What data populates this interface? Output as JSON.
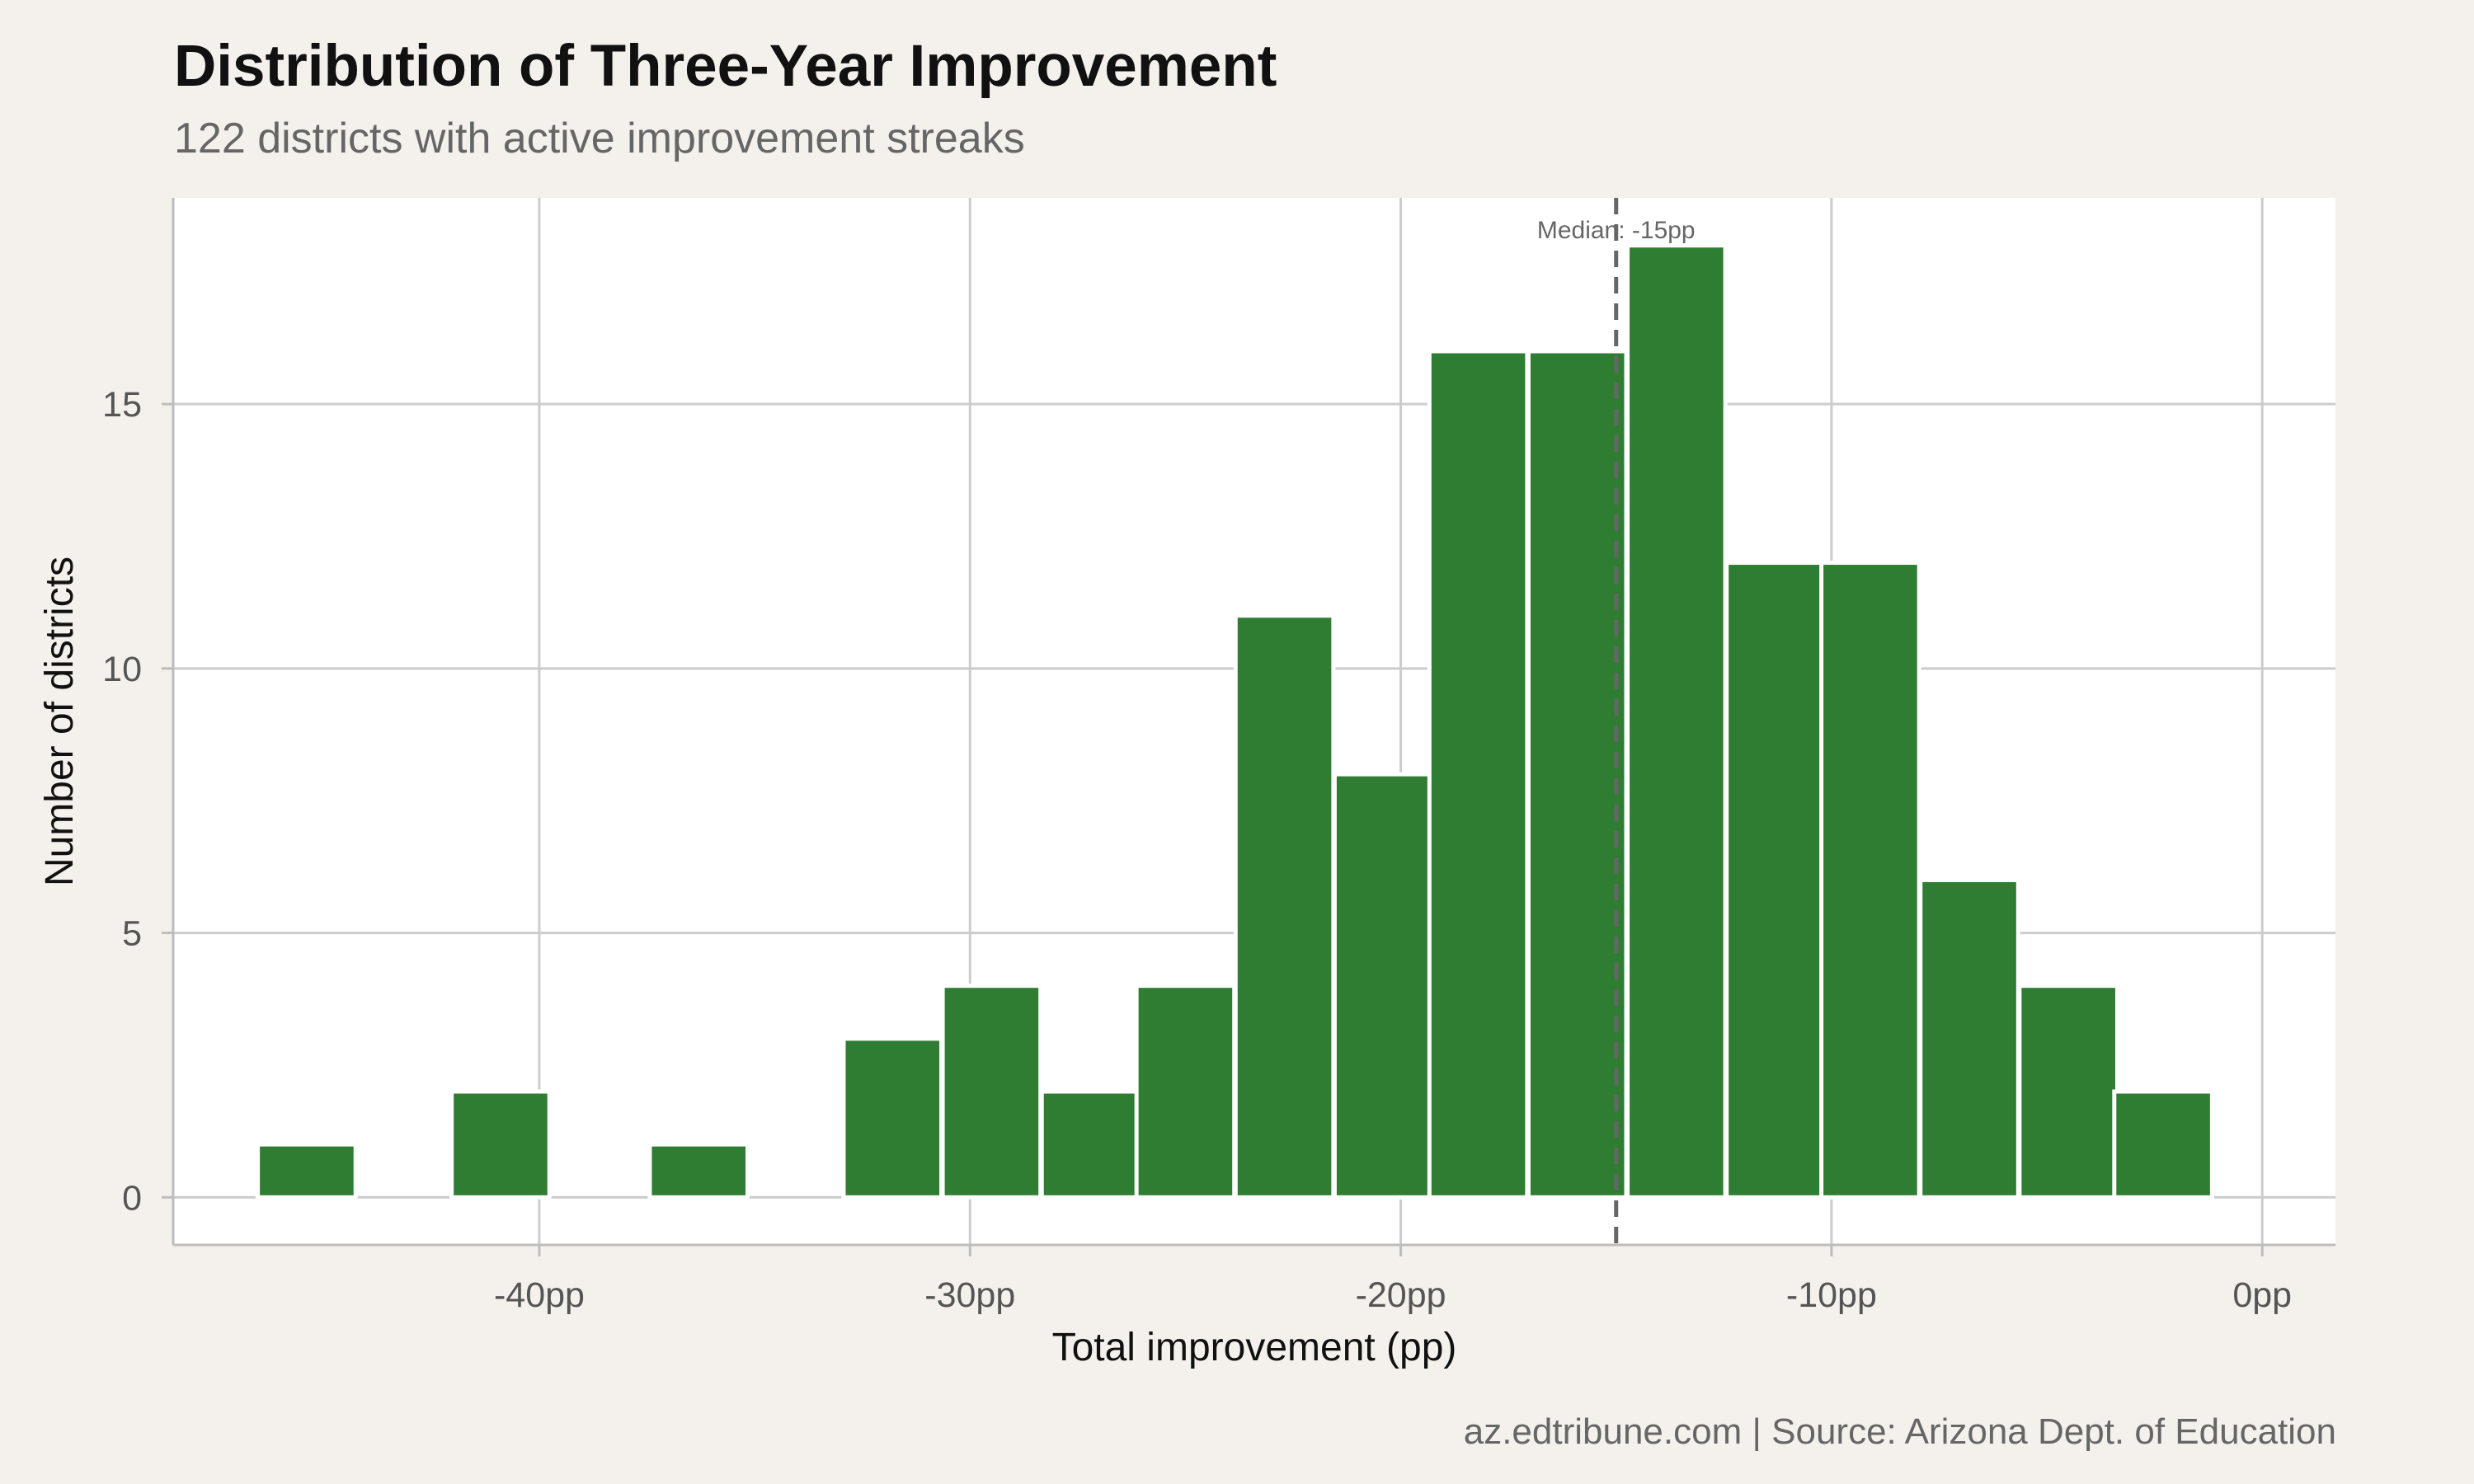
{
  "chart_data": {
    "type": "bar",
    "title": "Distribution of Three-Year Improvement",
    "subtitle": "122 districts with active improvement streaks",
    "xlabel": "Total improvement (pp)",
    "ylabel": "Number of districts",
    "caption": "az.edtribune.com | Source: Arizona Dept. of Education",
    "xlim": [
      -48.5,
      1.7
    ],
    "ylim": [
      -0.9,
      18.9
    ],
    "x_ticks": [
      {
        "value": -40,
        "label": "-40pp"
      },
      {
        "value": -30,
        "label": "-30pp"
      },
      {
        "value": -20,
        "label": "-20pp"
      },
      {
        "value": -10,
        "label": "-10pp"
      },
      {
        "value": 0,
        "label": "0pp"
      }
    ],
    "y_ticks": [
      {
        "value": 0,
        "label": "0"
      },
      {
        "value": 5,
        "label": "5"
      },
      {
        "value": 10,
        "label": "10"
      },
      {
        "value": 15,
        "label": "15"
      }
    ],
    "bin_width": 2.27,
    "bins": [
      {
        "center": -45.4,
        "count": 1
      },
      {
        "center": -43.1,
        "count": 0
      },
      {
        "center": -40.9,
        "count": 2
      },
      {
        "center": -38.6,
        "count": 0
      },
      {
        "center": -36.3,
        "count": 1
      },
      {
        "center": -34.0,
        "count": 0
      },
      {
        "center": -31.8,
        "count": 3
      },
      {
        "center": -29.5,
        "count": 4
      },
      {
        "center": -27.2,
        "count": 2
      },
      {
        "center": -25.0,
        "count": 4
      },
      {
        "center": -22.7,
        "count": 11
      },
      {
        "center": -20.4,
        "count": 8
      },
      {
        "center": -18.2,
        "count": 16
      },
      {
        "center": -15.9,
        "count": 16
      },
      {
        "center": -13.6,
        "count": 18
      },
      {
        "center": -11.3,
        "count": 12
      },
      {
        "center": -9.1,
        "count": 12
      },
      {
        "center": -6.8,
        "count": 6
      },
      {
        "center": -4.5,
        "count": 4
      },
      {
        "center": -2.3,
        "count": 2
      }
    ],
    "median": {
      "value": -15,
      "label": "Median: -15pp"
    },
    "grid": true,
    "legend": "none",
    "colors": {
      "bar": "#2e7d32",
      "bar_outline": "#ffffff",
      "median_line": "#666666",
      "panel": "#ffffff",
      "background": "#f4f1ec",
      "grid": "#cccccc"
    }
  }
}
